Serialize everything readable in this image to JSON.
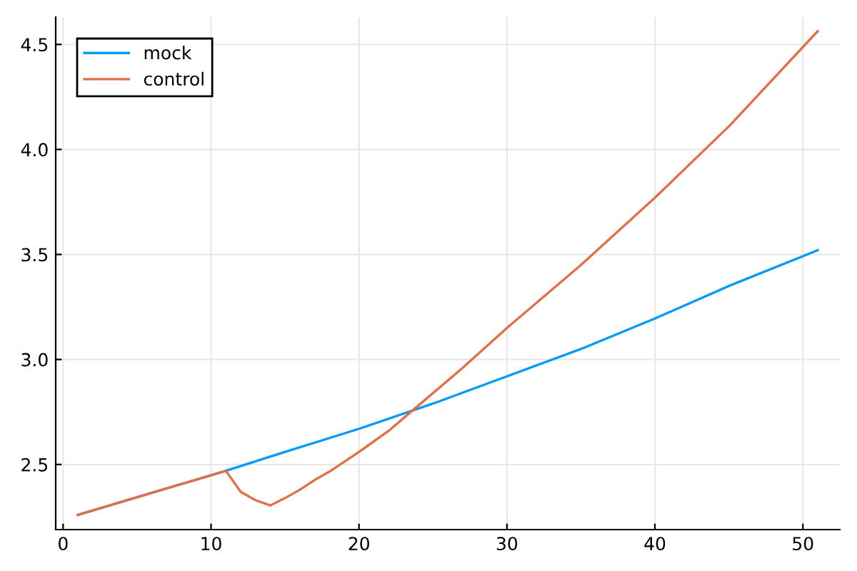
{
  "chart_data": {
    "type": "line",
    "series": [
      {
        "name": "mock",
        "color": "#009af9",
        "x": [
          1,
          11,
          15,
          20,
          25,
          30,
          35,
          40,
          45,
          51
        ],
        "values": [
          2.26,
          2.47,
          2.56,
          2.67,
          2.79,
          2.92,
          3.05,
          3.195,
          3.35,
          3.52
        ]
      },
      {
        "name": "control",
        "color": "#e26f46",
        "x": [
          1,
          11,
          12,
          13,
          14,
          15,
          16,
          17,
          18,
          20,
          22,
          24,
          27,
          30,
          35,
          40,
          45,
          51
        ],
        "values": [
          2.26,
          2.47,
          2.37,
          2.33,
          2.305,
          2.34,
          2.38,
          2.426,
          2.466,
          2.56,
          2.66,
          2.78,
          2.96,
          3.15,
          3.45,
          3.77,
          4.11,
          4.563
        ]
      }
    ],
    "xlim": [
      -0.5,
      52.5
    ],
    "ylim": [
      2.19,
      4.63
    ],
    "xticks": [
      0,
      10,
      20,
      30,
      40,
      50
    ],
    "yticks": [
      {
        "value": 2.5,
        "label": "2.5"
      },
      {
        "value": 3.0,
        "label": "3.0"
      },
      {
        "value": 3.5,
        "label": "3.5"
      },
      {
        "value": 4.0,
        "label": "4.0"
      },
      {
        "value": 4.5,
        "label": "4.5"
      }
    ],
    "grid": true,
    "legend": "top left",
    "marker": "none",
    "line_style": "solid"
  }
}
